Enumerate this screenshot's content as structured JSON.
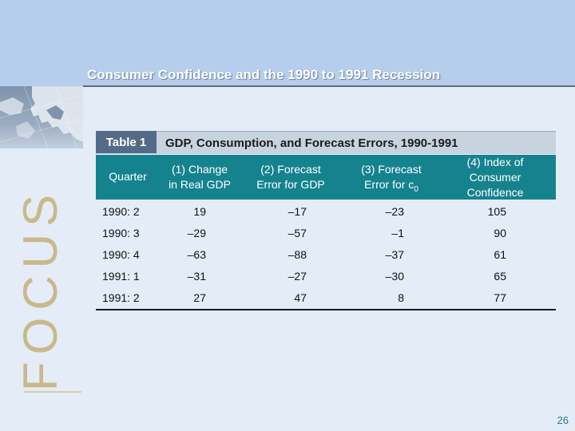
{
  "slide": {
    "title": "Consumer Confidence and the 1990 to 1991 Recession",
    "side_word": "FOCUS",
    "page_number": "26"
  },
  "table": {
    "number_label": "Table 1",
    "caption": "GDP, Consumption, and Forecast Errors, 1990-1991",
    "headers": {
      "quarter": "Quarter",
      "col1_line1": "(1) Change",
      "col1_line2": "in Real GDP",
      "col2_line1": "(2) Forecast",
      "col2_line2": "Error for GDP",
      "col3_line1": "(3) Forecast",
      "col3_line2_main": "Error for c",
      "col3_line2_sub": "0",
      "col4_line1": "(4) Index of",
      "col4_line2": "Consumer",
      "col4_line3": "Confidence"
    },
    "rows": [
      {
        "quarter": "1990: 2",
        "col1": "19",
        "col2": "–17",
        "col3": "–23",
        "col4": "105"
      },
      {
        "quarter": "1990: 3",
        "col1": "–29",
        "col2": "–57",
        "col3": "–1",
        "col4": "90"
      },
      {
        "quarter": "1990: 4",
        "col1": "–63",
        "col2": "–88",
        "col3": "–37",
        "col4": "61"
      },
      {
        "quarter": "1991: 1",
        "col1": "–31",
        "col2": "–27",
        "col3": "–30",
        "col4": "65"
      },
      {
        "quarter": "1991: 2",
        "col1": "27",
        "col2": "47",
        "col3": "8",
        "col4": "77"
      }
    ]
  },
  "colors": {
    "header_teal": "#15838e",
    "table_label_blue": "#546b88",
    "top_band": "#b6cdec",
    "background": "#e4ecf7",
    "focus_gold": "#c9b98a"
  },
  "icons": [
    "map-image"
  ]
}
